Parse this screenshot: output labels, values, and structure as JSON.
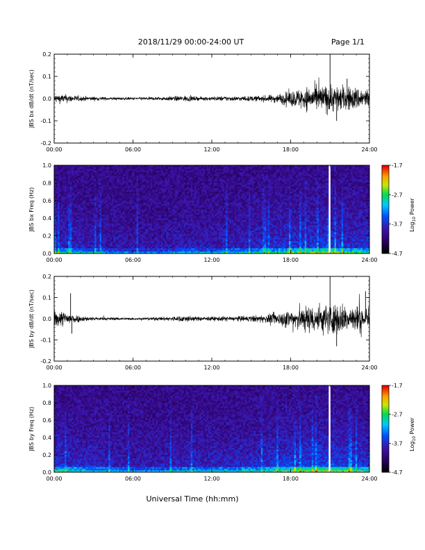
{
  "header": {
    "date_range": "2018/11/29  00:00-24:00 UT",
    "page": "Page 1/1"
  },
  "xlabel": "Universal Time (hh:mm)",
  "colors": {
    "trace": "#000000",
    "frame": "#000000"
  },
  "chart_data": [
    {
      "type": "line",
      "name": "bx-derivative",
      "ylabel": "JBS bx dB/dt (nT/sec)",
      "x_ticks": [
        "00:00",
        "06:00",
        "12:00",
        "18:00",
        "24:00"
      ],
      "xlim": [
        0,
        24
      ],
      "y_ticks": [
        "0.2",
        "0.1",
        "0.0",
        "-0.1",
        "-0.2"
      ],
      "ylim": [
        -0.2,
        0.2
      ],
      "envelope": {
        "hours": [
          0,
          1,
          2,
          3,
          4,
          5,
          6,
          7,
          8,
          9,
          10,
          11,
          12,
          13,
          14,
          15,
          16,
          17,
          18,
          19,
          20,
          21,
          22,
          23,
          24
        ],
        "amplitude": [
          0.018,
          0.016,
          0.01,
          0.008,
          0.006,
          0.006,
          0.005,
          0.006,
          0.007,
          0.009,
          0.012,
          0.007,
          0.008,
          0.01,
          0.009,
          0.01,
          0.012,
          0.018,
          0.03,
          0.045,
          0.05,
          0.055,
          0.05,
          0.045,
          0.04
        ]
      },
      "spikes": [
        {
          "hour": 21.0,
          "value": 0.2
        },
        {
          "hour": 21.5,
          "value": -0.1
        },
        {
          "hour": 22.3,
          "value": 0.09
        }
      ]
    },
    {
      "type": "heatmap",
      "name": "bx-spectrogram",
      "ylabel": "JBS bx Freq (Hz)",
      "x_ticks": [
        "00:00",
        "06:00",
        "12:00",
        "18:00",
        "24:00"
      ],
      "xlim": [
        0,
        24
      ],
      "y_ticks": [
        "1.0",
        "0.8",
        "0.6",
        "0.4",
        "0.2",
        "0.0"
      ],
      "ylim": [
        0,
        1.0
      ],
      "colorbar": {
        "label": "Log10 Power",
        "label_main": "Log",
        "label_sub": "10",
        "label_rest": " Power",
        "ticks": [
          "-1.7",
          "-2.7",
          "-3.7",
          "-4.7"
        ],
        "range": [
          -4.7,
          -1.7
        ]
      },
      "activity_hours": [
        0,
        2,
        4,
        6,
        8,
        10,
        12,
        14,
        16,
        18,
        20,
        21,
        22,
        24
      ],
      "activity_levels": [
        0.55,
        0.45,
        0.35,
        0.3,
        0.3,
        0.4,
        0.4,
        0.45,
        0.55,
        0.7,
        0.75,
        0.8,
        0.7,
        0.6
      ],
      "data_gap_hour": 20.9
    },
    {
      "type": "line",
      "name": "by-derivative",
      "ylabel": "JBS by dB/dt (nT/sec)",
      "x_ticks": [
        "00:00",
        "06:00",
        "12:00",
        "18:00",
        "24:00"
      ],
      "xlim": [
        0,
        24
      ],
      "y_ticks": [
        "0.2",
        "0.1",
        "0.0",
        "-0.1",
        "-0.2"
      ],
      "ylim": [
        -0.2,
        0.2
      ],
      "envelope": {
        "hours": [
          0,
          1,
          2,
          3,
          4,
          5,
          6,
          7,
          8,
          9,
          10,
          11,
          12,
          13,
          14,
          15,
          16,
          17,
          18,
          19,
          20,
          21,
          22,
          23,
          24
        ],
        "amplitude": [
          0.035,
          0.03,
          0.012,
          0.008,
          0.006,
          0.006,
          0.005,
          0.006,
          0.007,
          0.01,
          0.014,
          0.008,
          0.009,
          0.01,
          0.011,
          0.013,
          0.016,
          0.025,
          0.04,
          0.055,
          0.06,
          0.065,
          0.06,
          0.055,
          0.05
        ]
      },
      "spikes": [
        {
          "hour": 1.25,
          "value": 0.12
        },
        {
          "hour": 1.35,
          "value": -0.07
        },
        {
          "hour": 21.0,
          "value": 0.2
        },
        {
          "hour": 21.5,
          "value": -0.13
        },
        {
          "hour": 23.7,
          "value": 0.13
        }
      ]
    },
    {
      "type": "heatmap",
      "name": "by-spectrogram",
      "ylabel": "JBS by Freq (Hz)",
      "x_ticks": [
        "00:00",
        "06:00",
        "12:00",
        "18:00",
        "24:00"
      ],
      "xlim": [
        0,
        24
      ],
      "y_ticks": [
        "1.0",
        "0.8",
        "0.6",
        "0.4",
        "0.2",
        "0.0"
      ],
      "ylim": [
        0,
        1.0
      ],
      "colorbar": {
        "label": "Log10 Power",
        "label_main": "Log",
        "label_sub": "10",
        "label_rest": " Power",
        "ticks": [
          "-1.7",
          "-2.7",
          "-3.7",
          "-4.7"
        ],
        "range": [
          -4.7,
          -1.7
        ]
      },
      "activity_hours": [
        0,
        2,
        4,
        6,
        8,
        10,
        12,
        14,
        16,
        18,
        20,
        21,
        22,
        24
      ],
      "activity_levels": [
        0.7,
        0.6,
        0.45,
        0.4,
        0.4,
        0.5,
        0.5,
        0.55,
        0.65,
        0.8,
        0.85,
        0.9,
        0.8,
        0.7
      ],
      "data_gap_hour": 20.9
    }
  ]
}
